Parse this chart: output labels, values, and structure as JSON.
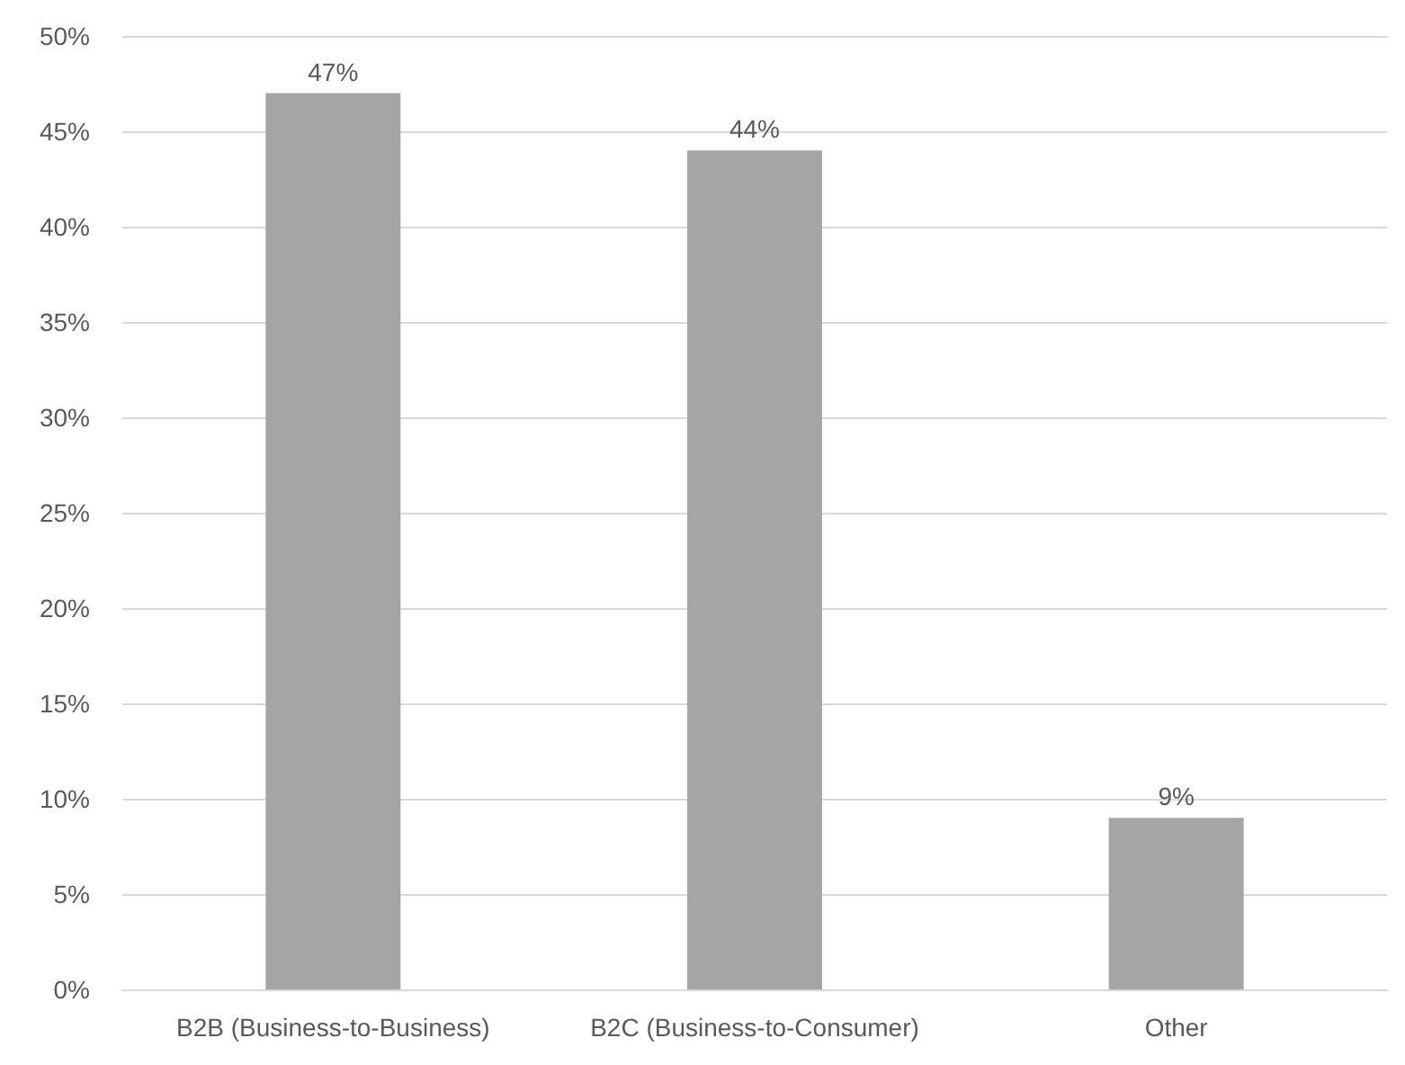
{
  "chart_data": {
    "type": "bar",
    "categories": [
      "B2B (Business-to-Business)",
      "B2C (Business-to-Consumer)",
      "Other"
    ],
    "values": [
      47,
      44,
      9
    ],
    "value_labels": [
      "47%",
      "44%",
      "9%"
    ],
    "color": "#a5a5a5",
    "ylim": [
      0,
      50
    ],
    "yticks": [
      {
        "value": 0,
        "label": "0%"
      },
      {
        "value": 5,
        "label": "5%"
      },
      {
        "value": 10,
        "label": "10%"
      },
      {
        "value": 15,
        "label": "15%"
      },
      {
        "value": 20,
        "label": "20%"
      },
      {
        "value": 25,
        "label": "25%"
      },
      {
        "value": 30,
        "label": "30%"
      },
      {
        "value": 35,
        "label": "35%"
      },
      {
        "value": 40,
        "label": "40%"
      },
      {
        "value": 45,
        "label": "45%"
      },
      {
        "value": 50,
        "label": "50%"
      }
    ],
    "grid": "y"
  }
}
